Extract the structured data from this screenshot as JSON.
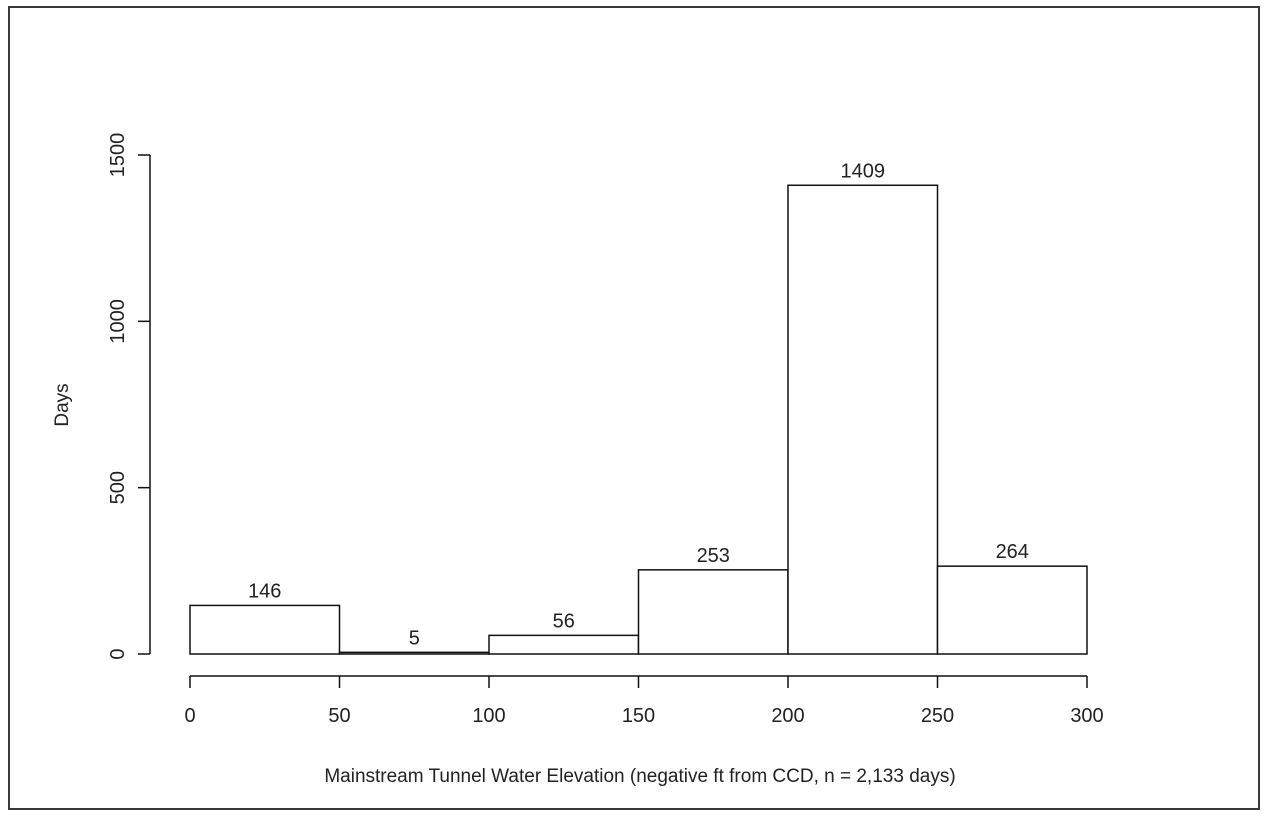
{
  "chart_data": {
    "type": "bar",
    "title": "",
    "xlabel": "Mainstream Tunnel Water Elevation (negative ft from CCD, n = 2,133 days)",
    "ylabel": "Days",
    "bins": [
      {
        "x0": 0,
        "x1": 50,
        "value": 146,
        "label": "146"
      },
      {
        "x0": 50,
        "x1": 100,
        "value": 5,
        "label": "5"
      },
      {
        "x0": 100,
        "x1": 150,
        "value": 56,
        "label": "56"
      },
      {
        "x0": 150,
        "x1": 200,
        "value": 253,
        "label": "253"
      },
      {
        "x0": 200,
        "x1": 250,
        "value": 1409,
        "label": "1409"
      },
      {
        "x0": 250,
        "x1": 300,
        "value": 264,
        "label": "264"
      }
    ],
    "xlim": [
      0,
      300
    ],
    "ylim": [
      0,
      1500
    ],
    "x_ticks": [
      0,
      50,
      100,
      150,
      200,
      250,
      300
    ],
    "x_tick_labels": [
      "0",
      "50",
      "100",
      "150",
      "200",
      "250",
      "300"
    ],
    "y_ticks": [
      0,
      500,
      1000,
      1500
    ],
    "y_tick_labels": [
      "0",
      "500",
      "1000",
      "1500"
    ],
    "grid": false,
    "legend": "none",
    "colors": {
      "bar_fill": "#ffffff",
      "bar_stroke": "#111111",
      "axis": "#111111",
      "text": "#222222"
    }
  }
}
